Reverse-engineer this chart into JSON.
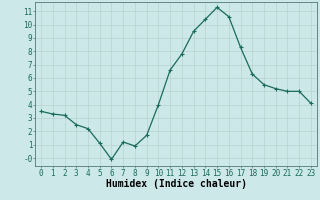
{
  "x": [
    0,
    1,
    2,
    3,
    4,
    5,
    6,
    7,
    8,
    9,
    10,
    11,
    12,
    13,
    14,
    15,
    16,
    17,
    18,
    19,
    20,
    21,
    22,
    23
  ],
  "y": [
    3.5,
    3.3,
    3.2,
    2.5,
    2.2,
    1.1,
    -0.1,
    1.2,
    0.9,
    1.7,
    4.0,
    6.6,
    7.8,
    9.5,
    10.4,
    11.3,
    10.6,
    8.3,
    6.3,
    5.5,
    5.2,
    5.0,
    5.0,
    4.1
  ],
  "line_color": "#1a6b5a",
  "marker": "+",
  "markersize": 3,
  "linewidth": 0.9,
  "bg_color": "#cce8e8",
  "grid_color": "#b8d0d0",
  "xlabel": "Humidex (Indice chaleur)",
  "xlabel_fontsize": 7,
  "ylabel_ticks": [
    "-0",
    "1",
    "2",
    "3",
    "4",
    "5",
    "6",
    "7",
    "8",
    "9",
    "10",
    "11"
  ],
  "ytick_values": [
    0,
    1,
    2,
    3,
    4,
    5,
    6,
    7,
    8,
    9,
    10,
    11
  ],
  "ylim": [
    -0.6,
    11.7
  ],
  "xlim": [
    -0.5,
    23.5
  ],
  "xtick_values": [
    0,
    1,
    2,
    3,
    4,
    5,
    6,
    7,
    8,
    9,
    10,
    11,
    12,
    13,
    14,
    15,
    16,
    17,
    18,
    19,
    20,
    21,
    22,
    23
  ],
  "tick_fontsize": 5.5
}
